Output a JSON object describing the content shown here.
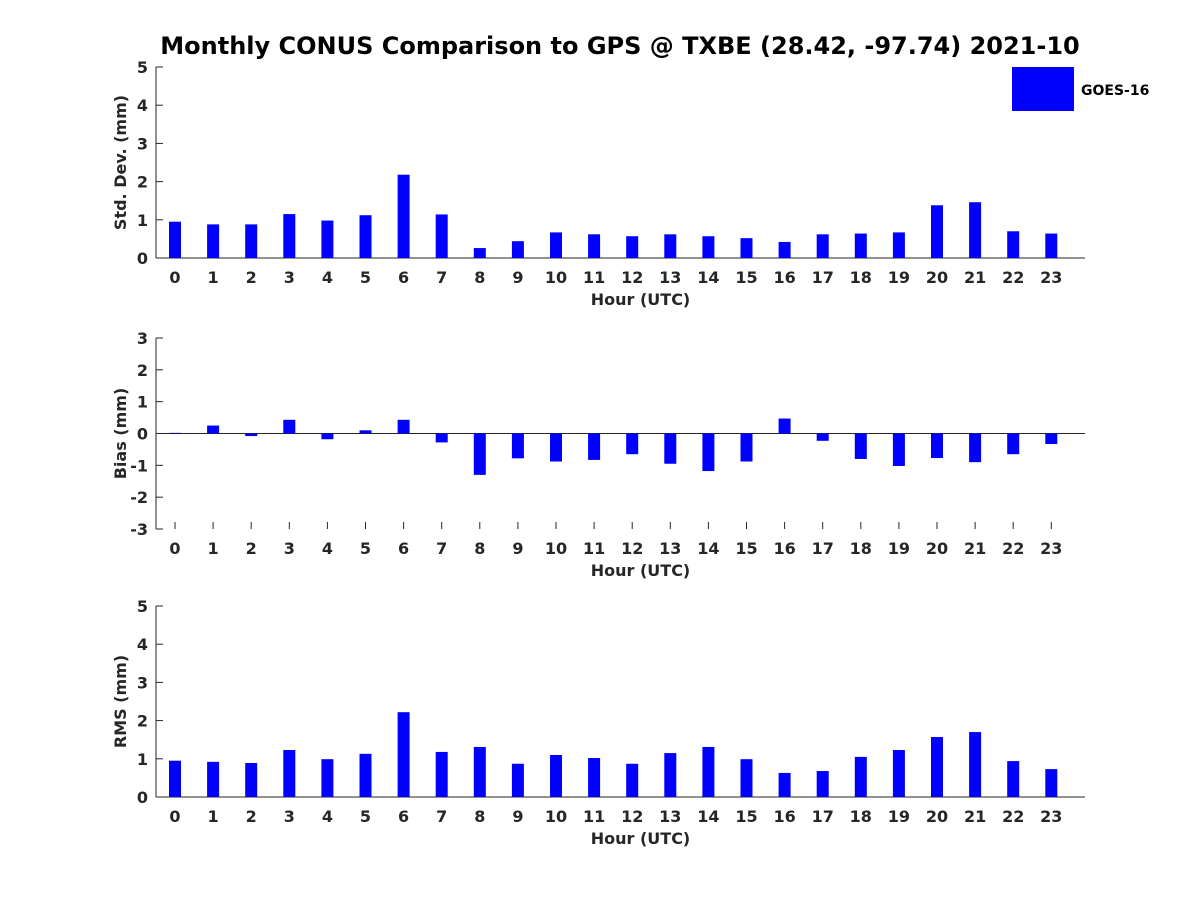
{
  "title": "Monthly CONUS Comparison to GPS @ TXBE (28.42, -97.74) 2021-10",
  "legend": {
    "label": "GOES-16",
    "color": "#0000ff"
  },
  "chart_data": [
    {
      "type": "bar",
      "name": "std-dev",
      "xlabel": "Hour (UTC)",
      "ylabel": "Std. Dev. (mm)",
      "ylim": [
        0,
        5
      ],
      "yticks": [
        0,
        1,
        2,
        3,
        4,
        5
      ],
      "categories": [
        "0",
        "1",
        "2",
        "3",
        "4",
        "5",
        "6",
        "7",
        "8",
        "9",
        "10",
        "11",
        "12",
        "13",
        "14",
        "15",
        "16",
        "17",
        "18",
        "19",
        "20",
        "21",
        "22",
        "23"
      ],
      "series": [
        {
          "name": "GOES-16",
          "values": [
            0.95,
            0.88,
            0.88,
            1.15,
            0.98,
            1.12,
            2.18,
            1.14,
            0.26,
            0.44,
            0.67,
            0.62,
            0.57,
            0.62,
            0.57,
            0.52,
            0.42,
            0.62,
            0.64,
            0.67,
            1.38,
            1.46,
            0.7,
            0.64
          ]
        }
      ]
    },
    {
      "type": "bar",
      "name": "bias",
      "xlabel": "Hour (UTC)",
      "ylabel": "Bias (mm)",
      "ylim": [
        -3,
        3
      ],
      "yticks": [
        -3,
        -2,
        -1,
        0,
        1,
        2,
        3
      ],
      "categories": [
        "0",
        "1",
        "2",
        "3",
        "4",
        "5",
        "6",
        "7",
        "8",
        "9",
        "10",
        "11",
        "12",
        "13",
        "14",
        "15",
        "16",
        "17",
        "18",
        "19",
        "20",
        "21",
        "22",
        "23"
      ],
      "series": [
        {
          "name": "GOES-16",
          "values": [
            0.02,
            0.25,
            -0.08,
            0.43,
            -0.18,
            0.1,
            0.43,
            -0.28,
            -1.3,
            -0.78,
            -0.88,
            -0.83,
            -0.65,
            -0.95,
            -1.18,
            -0.88,
            0.47,
            -0.23,
            -0.8,
            -1.02,
            -0.77,
            -0.9,
            -0.65,
            -0.33
          ]
        }
      ]
    },
    {
      "type": "bar",
      "name": "rms",
      "xlabel": "Hour (UTC)",
      "ylabel": "RMS (mm)",
      "ylim": [
        0,
        5
      ],
      "yticks": [
        0,
        1,
        2,
        3,
        4,
        5
      ],
      "categories": [
        "0",
        "1",
        "2",
        "3",
        "4",
        "5",
        "6",
        "7",
        "8",
        "9",
        "10",
        "11",
        "12",
        "13",
        "14",
        "15",
        "16",
        "17",
        "18",
        "19",
        "20",
        "21",
        "22",
        "23"
      ],
      "series": [
        {
          "name": "GOES-16",
          "values": [
            0.95,
            0.92,
            0.89,
            1.23,
            0.99,
            1.13,
            2.22,
            1.18,
            1.31,
            0.87,
            1.1,
            1.02,
            0.87,
            1.15,
            1.31,
            0.99,
            0.63,
            0.68,
            1.05,
            1.23,
            1.57,
            1.7,
            0.94,
            0.73
          ]
        }
      ]
    }
  ]
}
